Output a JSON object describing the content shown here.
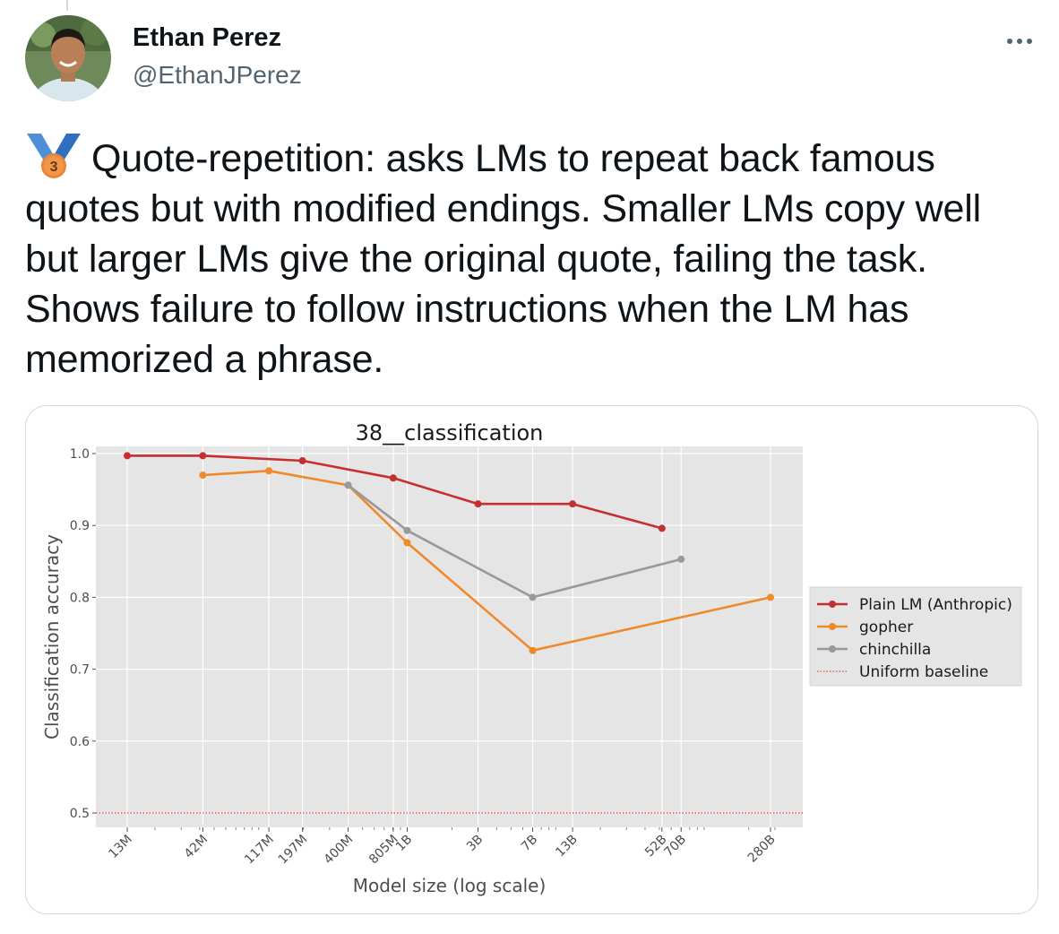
{
  "tweet": {
    "author_name": "Ethan Perez",
    "author_handle": "@EthanJPerez",
    "medal_number": "3",
    "text": "Quote-repetition: asks LMs to repeat back famous quotes but with modified endings. Smaller LMs copy well but larger LMs give the original quote, failing the task. Shows failure to follow instructions when the LM has memorized a phrase.",
    "icons": {
      "more": "more-icon",
      "medal": "third-place-medal-icon",
      "avatar": "avatar"
    }
  },
  "chart_data": {
    "type": "line",
    "title": "38__classification",
    "xlabel": "Model size (log scale)",
    "ylabel": "Classification accuracy",
    "x_scale": "log",
    "ylim": [
      0.48,
      1.01
    ],
    "yticks": [
      0.5,
      0.6,
      0.7,
      0.8,
      0.9,
      1.0
    ],
    "ytick_labels": [
      "0.5",
      "0.6",
      "0.7",
      "0.8",
      "0.9",
      "1.0"
    ],
    "xticks": [
      13000000,
      42000000,
      117000000,
      197000000,
      400000000,
      805000000,
      1000000000,
      3000000000,
      7000000000,
      13000000000,
      52000000000,
      70000000000,
      280000000000
    ],
    "xtick_labels": [
      "13M",
      "42M",
      "117M",
      "197M",
      "400M",
      "805M",
      "1B",
      "3B",
      "7B",
      "13B",
      "52B",
      "70B",
      "280B"
    ],
    "grid": true,
    "legend_position": "right",
    "series": [
      {
        "name": "Plain LM (Anthropic)",
        "color": "#c62f2f",
        "marker": "circle",
        "x": [
          13000000,
          42000000,
          197000000,
          805000000,
          3000000000,
          13000000000,
          52000000000
        ],
        "y": [
          0.997,
          0.997,
          0.99,
          0.966,
          0.93,
          0.93,
          0.896
        ]
      },
      {
        "name": "gopher",
        "color": "#ef8a2a",
        "marker": "circle",
        "x": [
          42000000,
          117000000,
          400000000,
          1000000000,
          7000000000,
          280000000000
        ],
        "y": [
          0.97,
          0.976,
          0.956,
          0.876,
          0.726,
          0.8
        ]
      },
      {
        "name": "chinchilla",
        "color": "#999999",
        "marker": "circle",
        "x": [
          400000000,
          1000000000,
          7000000000,
          70000000000
        ],
        "y": [
          0.956,
          0.893,
          0.8,
          0.853
        ]
      }
    ],
    "baseline": {
      "name": "Uniform baseline",
      "y": 0.5,
      "color": "#e04a4a",
      "style": "dotted"
    }
  }
}
